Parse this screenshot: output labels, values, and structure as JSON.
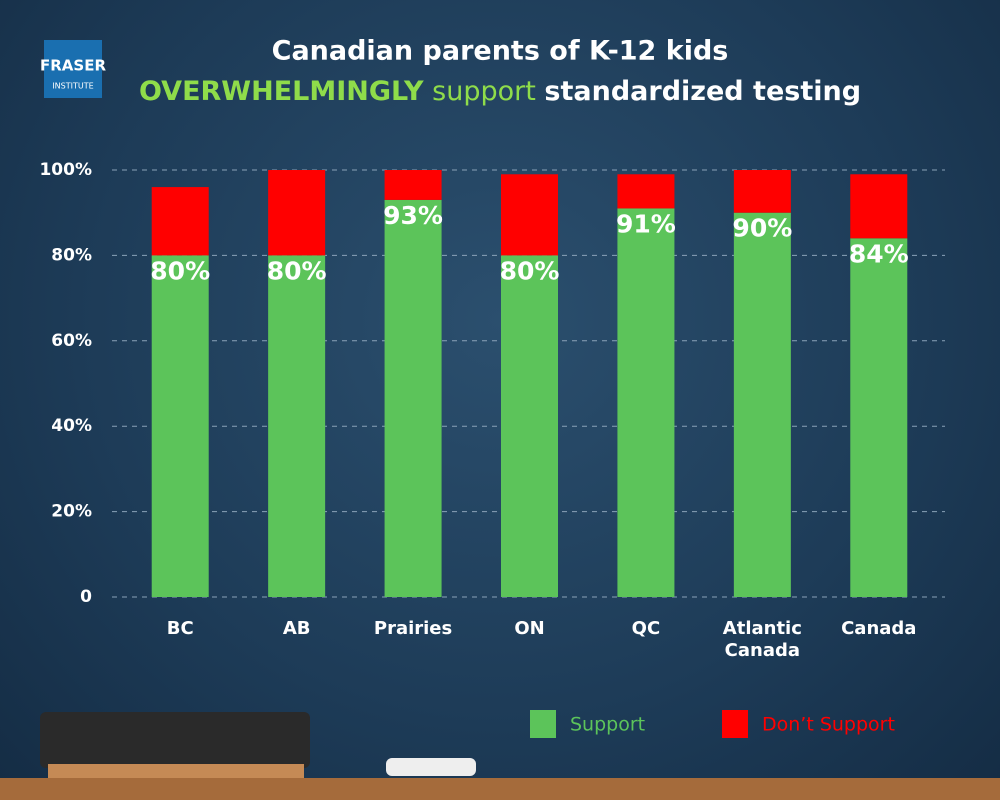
{
  "logo": [
    "FRASER",
    "INSTITUTE"
  ],
  "chart_data": {
    "type": "stacked_bar",
    "title": "Canadian parents of K-12 kids",
    "subtitle_parts": [
      "OVERWHELMINGLY",
      "support",
      "standardized testing"
    ],
    "categories": [
      "BC",
      "AB",
      "Prairies",
      "ON",
      "QC",
      "Atlantic Canada",
      "Canada"
    ],
    "series": [
      {
        "name": "Support",
        "color": "#5cc45a",
        "values": [
          80,
          80,
          93,
          80,
          91,
          90,
          84
        ],
        "value_labels": [
          "80%",
          "80%",
          "93%",
          "80%",
          "91%",
          "90%",
          "84%"
        ]
      },
      {
        "name": "Don’t Support",
        "color": "#ff0000",
        "values": [
          16,
          20,
          7,
          19,
          8,
          10,
          15
        ]
      }
    ],
    "ylim": [
      0,
      100
    ],
    "yticks": [
      0,
      {
        "value": 20,
        "label": "20%"
      },
      {
        "value": 40,
        "label": "40%"
      },
      {
        "value": 60,
        "label": "60%"
      },
      {
        "value": 80,
        "label": "80%"
      },
      {
        "value": 100,
        "label": "100%"
      }
    ],
    "grid": true
  }
}
